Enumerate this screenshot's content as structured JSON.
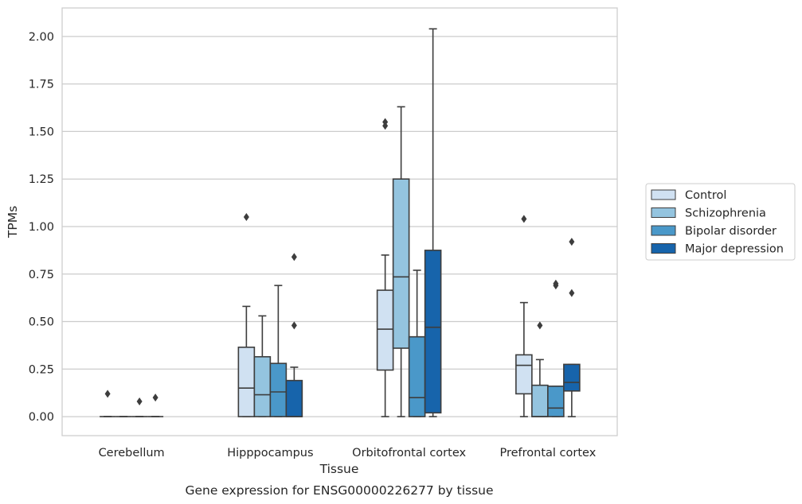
{
  "chart_data": {
    "type": "box",
    "caption": "Gene expression for ENSG00000226277 by tissue",
    "xlabel": "Tissue",
    "ylabel": "TPMs",
    "ylim": [
      -0.1,
      2.15
    ],
    "yticks": [
      "0.00",
      "0.25",
      "0.50",
      "0.75",
      "1.00",
      "1.25",
      "1.50",
      "1.75",
      "2.00"
    ],
    "grid": true,
    "legend_position": "right",
    "categories": [
      "Cerebellum",
      "Hipppocampus",
      "Orbitofrontal cortex",
      "Prefrontal cortex"
    ],
    "series": [
      {
        "name": "Control",
        "color": "#d0e1f2",
        "boxes": [
          {
            "whislo": 0.0,
            "q1": 0.0,
            "med": 0.0,
            "q3": 0.0,
            "whishi": 0.0,
            "fliers": [
              0.12
            ]
          },
          {
            "whislo": 0.0,
            "q1": 0.0,
            "med": 0.15,
            "q3": 0.365,
            "whishi": 0.58,
            "fliers": [
              1.05
            ]
          },
          {
            "whislo": 0.0,
            "q1": 0.245,
            "med": 0.46,
            "q3": 0.665,
            "whishi": 0.85,
            "fliers": [
              1.53,
              1.55
            ]
          },
          {
            "whislo": 0.0,
            "q1": 0.12,
            "med": 0.27,
            "q3": 0.325,
            "whishi": 0.6,
            "fliers": [
              1.04
            ]
          }
        ]
      },
      {
        "name": "Schizophrenia",
        "color": "#94c4df",
        "boxes": [
          {
            "whislo": 0.0,
            "q1": 0.0,
            "med": 0.0,
            "q3": 0.0,
            "whishi": 0.0,
            "fliers": []
          },
          {
            "whislo": 0.0,
            "q1": 0.0,
            "med": 0.115,
            "q3": 0.315,
            "whishi": 0.53,
            "fliers": []
          },
          {
            "whislo": 0.0,
            "q1": 0.36,
            "med": 0.735,
            "q3": 1.25,
            "whishi": 1.63,
            "fliers": []
          },
          {
            "whislo": 0.0,
            "q1": 0.0,
            "med": 0.0,
            "q3": 0.165,
            "whishi": 0.3,
            "fliers": [
              0.48
            ]
          }
        ]
      },
      {
        "name": "Bipolar disorder",
        "color": "#4a98c9",
        "boxes": [
          {
            "whislo": 0.0,
            "q1": 0.0,
            "med": 0.0,
            "q3": 0.0,
            "whishi": 0.0,
            "fliers": [
              0.08
            ]
          },
          {
            "whislo": 0.0,
            "q1": 0.0,
            "med": 0.13,
            "q3": 0.28,
            "whishi": 0.69,
            "fliers": []
          },
          {
            "whislo": 0.0,
            "q1": 0.0,
            "med": 0.1,
            "q3": 0.42,
            "whishi": 0.77,
            "fliers": []
          },
          {
            "whislo": 0.0,
            "q1": 0.0,
            "med": 0.045,
            "q3": 0.16,
            "whishi": 0.16,
            "fliers": [
              0.69,
              0.7
            ]
          }
        ]
      },
      {
        "name": "Major depression",
        "color": "#1764ab",
        "boxes": [
          {
            "whislo": 0.0,
            "q1": 0.0,
            "med": 0.0,
            "q3": 0.0,
            "whishi": 0.0,
            "fliers": [
              0.1
            ]
          },
          {
            "whislo": 0.0,
            "q1": 0.0,
            "med": 0.0,
            "q3": 0.19,
            "whishi": 0.26,
            "fliers": [
              0.48,
              0.84
            ]
          },
          {
            "whislo": 0.0,
            "q1": 0.02,
            "med": 0.47,
            "q3": 0.875,
            "whishi": 2.04,
            "fliers": []
          },
          {
            "whislo": 0.0,
            "q1": 0.135,
            "med": 0.18,
            "q3": 0.275,
            "whishi": 0.275,
            "fliers": [
              0.65,
              0.92
            ]
          }
        ]
      }
    ]
  }
}
